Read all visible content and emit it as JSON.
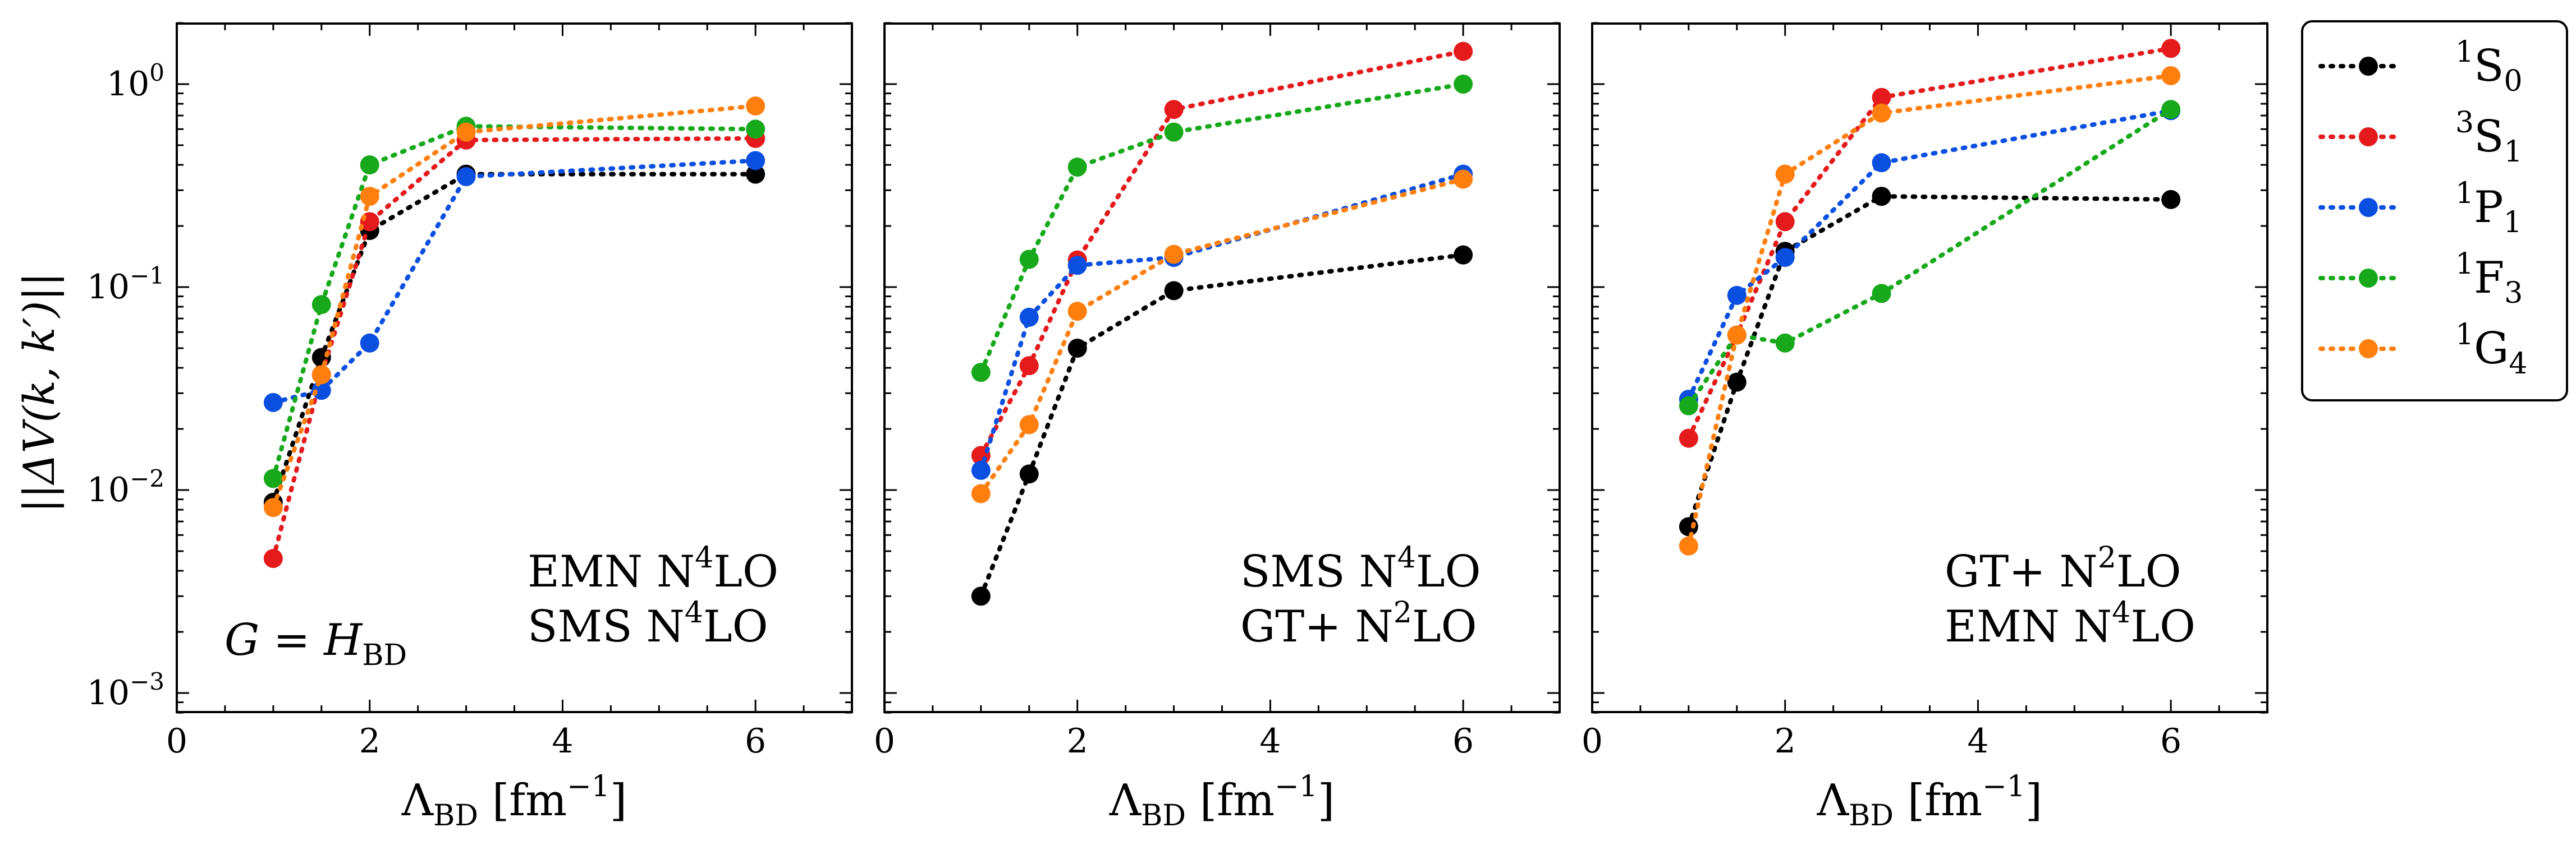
{
  "figure": {
    "ylabel": "||ΔV(k, k′)||",
    "xlabel_main": "Λ",
    "xlabel_sub": "BD",
    "xlabel_unit": "[fm",
    "xlabel_unit_exp": "−1",
    "xlabel_unit_close": "]"
  },
  "legend": {
    "entries": [
      {
        "pre": "1",
        "main": "S",
        "sub": "0",
        "color": "#000000"
      },
      {
        "pre": "3",
        "main": "S",
        "sub": "1",
        "color": "#e41a1c"
      },
      {
        "pre": "1",
        "main": "P",
        "sub": "1",
        "color": "#0b4fe0"
      },
      {
        "pre": "1",
        "main": "F",
        "sub": "3",
        "color": "#17a91b"
      },
      {
        "pre": "1",
        "main": "G",
        "sub": "4",
        "color": "#ff7f0e"
      }
    ]
  },
  "chart_data": [
    {
      "type": "line",
      "yscale": "log",
      "xlim": [
        0,
        7
      ],
      "ylim": [
        0.0008,
        2.0
      ],
      "x_ticks": [
        "0",
        "2",
        "4",
        "6"
      ],
      "y_ticks": [
        {
          "value": 0.001,
          "label": "10",
          "exp": "−3"
        },
        {
          "value": 0.01,
          "label": "10",
          "exp": "−2"
        },
        {
          "value": 0.1,
          "label": "10",
          "exp": "−1"
        },
        {
          "value": 1,
          "label": "10",
          "exp": "0"
        }
      ],
      "annotations": [
        {
          "text": "EMN N",
          "sup": "4",
          "tail": "LO"
        },
        {
          "text": "SMS N",
          "sup": "4",
          "tail": "LO"
        }
      ],
      "operator_label": {
        "lhs": "G",
        "eq": " = ",
        "rhs": "H",
        "sub": "BD"
      },
      "x": [
        1,
        1.5,
        2,
        3,
        6
      ],
      "series": [
        {
          "name": "1S0",
          "values": [
            0.0087,
            0.045,
            0.19,
            0.36,
            0.36
          ]
        },
        {
          "name": "3S1",
          "values": [
            0.0046,
            0.037,
            0.21,
            0.53,
            0.54
          ]
        },
        {
          "name": "1P1",
          "values": [
            0.027,
            0.031,
            0.053,
            0.35,
            0.42
          ]
        },
        {
          "name": "1F3",
          "values": [
            0.0114,
            0.082,
            0.4,
            0.62,
            0.6
          ]
        },
        {
          "name": "1G4",
          "values": [
            0.0082,
            0.037,
            0.28,
            0.58,
            0.78
          ]
        }
      ]
    },
    {
      "type": "line",
      "yscale": "log",
      "xlim": [
        0,
        7
      ],
      "ylim": [
        0.0008,
        2.0
      ],
      "x_ticks": [
        "0",
        "2",
        "4",
        "6"
      ],
      "annotations": [
        {
          "text": "SMS N",
          "sup": "4",
          "tail": "LO"
        },
        {
          "text": "GT+ N",
          "sup": "2",
          "tail": "LO"
        }
      ],
      "x": [
        1,
        1.5,
        2,
        3,
        6
      ],
      "series": [
        {
          "name": "1S0",
          "values": [
            0.003,
            0.012,
            0.05,
            0.096,
            0.144
          ]
        },
        {
          "name": "3S1",
          "values": [
            0.0148,
            0.041,
            0.136,
            0.75,
            1.45
          ]
        },
        {
          "name": "1P1",
          "values": [
            0.0125,
            0.071,
            0.128,
            0.14,
            0.36
          ]
        },
        {
          "name": "1F3",
          "values": [
            0.038,
            0.137,
            0.39,
            0.58,
            1.0
          ]
        },
        {
          "name": "1G4",
          "values": [
            0.0096,
            0.021,
            0.076,
            0.145,
            0.34
          ]
        }
      ]
    },
    {
      "type": "line",
      "yscale": "log",
      "xlim": [
        0,
        7
      ],
      "ylim": [
        0.0008,
        2.0
      ],
      "x_ticks": [
        "0",
        "2",
        "4",
        "6"
      ],
      "annotations": [
        {
          "text": "GT+ N",
          "sup": "2",
          "tail": "LO"
        },
        {
          "text": "EMN N",
          "sup": "4",
          "tail": "LO"
        }
      ],
      "x": [
        1,
        1.5,
        2,
        3,
        6
      ],
      "series": [
        {
          "name": "1S0",
          "values": [
            0.0066,
            0.034,
            0.15,
            0.28,
            0.27
          ]
        },
        {
          "name": "3S1",
          "values": [
            0.018,
            0.058,
            0.21,
            0.86,
            1.5
          ]
        },
        {
          "name": "1P1",
          "values": [
            0.028,
            0.091,
            0.14,
            0.41,
            0.74
          ]
        },
        {
          "name": "1F3",
          "values": [
            0.026,
            0.058,
            0.053,
            0.093,
            0.75
          ]
        },
        {
          "name": "1G4",
          "values": [
            0.0053,
            0.058,
            0.36,
            0.72,
            1.1
          ]
        }
      ]
    }
  ]
}
